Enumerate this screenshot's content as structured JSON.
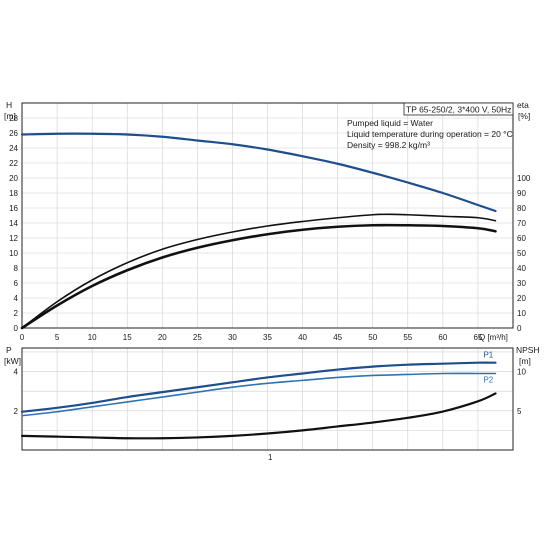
{
  "chart_data": [
    {
      "type": "line",
      "title": "TP 65-250/2, 3*400 V, 50Hz",
      "info_lines": [
        "Pumped liquid = Water",
        "Liquid temperature during operation = 20 °C",
        "Density = 998.2 kg/m³"
      ],
      "ylabel_left": "H",
      "ylabel_left_unit": "[m]",
      "ylabel_right": "eta",
      "ylabel_right_unit": "[%]",
      "xlabel": "Q [m³/h]",
      "xlim": [
        0,
        70
      ],
      "ylim": [
        0,
        30
      ],
      "ylim_right": [
        0,
        150
      ],
      "x_ticks": [
        "0",
        "5",
        "10",
        "15",
        "20",
        "25",
        "30",
        "35",
        "40",
        "45",
        "50",
        "55",
        "60",
        "65"
      ],
      "y_ticks": [
        "0",
        "2",
        "4",
        "6",
        "8",
        "10",
        "12",
        "14",
        "16",
        "18",
        "20",
        "22",
        "24",
        "26",
        "28"
      ],
      "y_ticks_right": [
        "0",
        "10",
        "20",
        "30",
        "40",
        "50",
        "60",
        "70",
        "80",
        "90",
        "100"
      ],
      "grid": true,
      "series": [
        {
          "axis": "left",
          "color": "#1f4e8c",
          "x": [
            0,
            5,
            10,
            15,
            20,
            25,
            30,
            35,
            40,
            45,
            50,
            55,
            60,
            65,
            67.5
          ],
          "y": [
            25.8,
            25.9,
            25.9,
            25.8,
            25.5,
            25.0,
            24.5,
            23.8,
            22.9,
            21.9,
            20.7,
            19.4,
            18.0,
            16.4,
            15.6
          ]
        },
        {
          "axis": "right",
          "color": "#111111",
          "x": [
            0,
            5,
            10,
            15,
            20,
            25,
            30,
            35,
            40,
            45,
            50,
            52.5,
            55,
            60,
            65,
            67.5
          ],
          "y": [
            0,
            17.5,
            32,
            43.5,
            52.5,
            59,
            64,
            68,
            71,
            73.5,
            75.5,
            75.8,
            75.5,
            74.5,
            73.5,
            71.5
          ]
        },
        {
          "axis": "right",
          "color": "#111111",
          "x": [
            0,
            5,
            10,
            15,
            20,
            25,
            30,
            35,
            40,
            45,
            50,
            55,
            60,
            65,
            67.5
          ],
          "y": [
            0,
            15,
            28,
            38.5,
            47,
            53.5,
            58.5,
            62.5,
            65.5,
            67.5,
            68.5,
            68.5,
            68.0,
            66.5,
            64.5
          ]
        }
      ]
    },
    {
      "type": "line",
      "ylabel_left": "P",
      "ylabel_left_unit": "[kW]",
      "ylabel_right": "NPSH",
      "ylabel_right_unit": "[m]",
      "xlim": [
        0,
        70
      ],
      "ylim": [
        0,
        5.2
      ],
      "ylim_right": [
        0,
        13
      ],
      "y_ticks": [
        "2",
        "4"
      ],
      "y_ticks_right": [
        "5",
        "10"
      ],
      "x_marker": "1",
      "grid": true,
      "series": [
        {
          "name": "P1",
          "axis": "left",
          "color": "#1f4e8c",
          "x": [
            0,
            5,
            10,
            15,
            20,
            25,
            30,
            35,
            40,
            45,
            50,
            55,
            60,
            65,
            67.5
          ],
          "y": [
            1.95,
            2.15,
            2.4,
            2.7,
            2.95,
            3.2,
            3.45,
            3.7,
            3.9,
            4.1,
            4.25,
            4.35,
            4.4,
            4.45,
            4.45
          ]
        },
        {
          "name": "P2",
          "axis": "left",
          "color": "#2e74b5",
          "x": [
            0,
            5,
            10,
            15,
            20,
            25,
            30,
            35,
            40,
            45,
            50,
            55,
            60,
            65,
            67.5
          ],
          "y": [
            1.75,
            1.95,
            2.2,
            2.45,
            2.7,
            2.95,
            3.2,
            3.4,
            3.55,
            3.7,
            3.8,
            3.85,
            3.9,
            3.9,
            3.9
          ]
        },
        {
          "axis": "right",
          "color": "#111111",
          "x": [
            0,
            5,
            10,
            15,
            20,
            25,
            30,
            35,
            40,
            45,
            50,
            55,
            60,
            65,
            67.5
          ],
          "y": [
            1.8,
            1.7,
            1.6,
            1.5,
            1.5,
            1.6,
            1.8,
            2.1,
            2.5,
            3.0,
            3.5,
            4.1,
            4.9,
            6.2,
            7.2
          ]
        }
      ]
    }
  ]
}
